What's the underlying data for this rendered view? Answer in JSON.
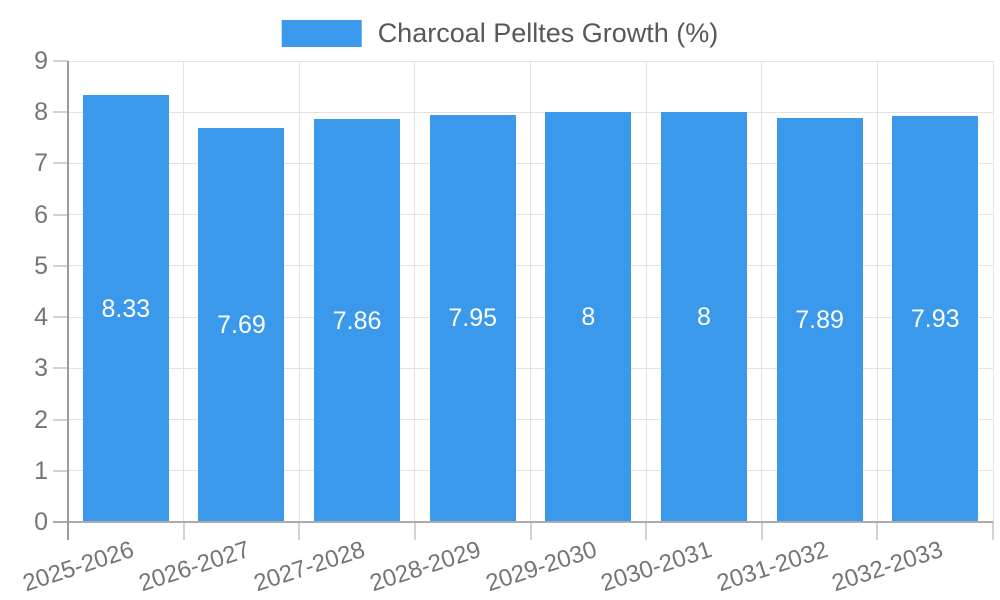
{
  "legend": {
    "label": "Charcoal Pelltes Growth (%)"
  },
  "chart_data": {
    "type": "bar",
    "title": "Charcoal Pelltes Growth (%)",
    "categories": [
      "2025-2026",
      "2026-2027",
      "2027-2028",
      "2028-2029",
      "2029-2030",
      "2030-2031",
      "2031-2032",
      "2032-2033"
    ],
    "series": [
      {
        "name": "Charcoal Pelltes Growth (%)",
        "values": [
          8.33,
          7.69,
          7.86,
          7.95,
          8,
          8,
          7.89,
          7.93
        ]
      }
    ],
    "bar_value_labels": [
      "8.33",
      "7.69",
      "7.86",
      "7.95",
      "8",
      "8",
      "7.89",
      "7.93"
    ],
    "xlabel": "",
    "ylabel": "",
    "ylim": [
      0,
      9
    ],
    "yticks": [
      0,
      1,
      2,
      3,
      4,
      5,
      6,
      7,
      8,
      9
    ],
    "grid": true,
    "legend_position": "top",
    "colors": {
      "bar": "#3b99ec",
      "bar_label": "#ffffff",
      "grid": "#e3e3e3",
      "zero_line": "#ababab",
      "axis_line": "#9b9b9b",
      "tick": "#d2d2d2",
      "axis_label": "#757575",
      "legend_text": "#55595c"
    }
  }
}
